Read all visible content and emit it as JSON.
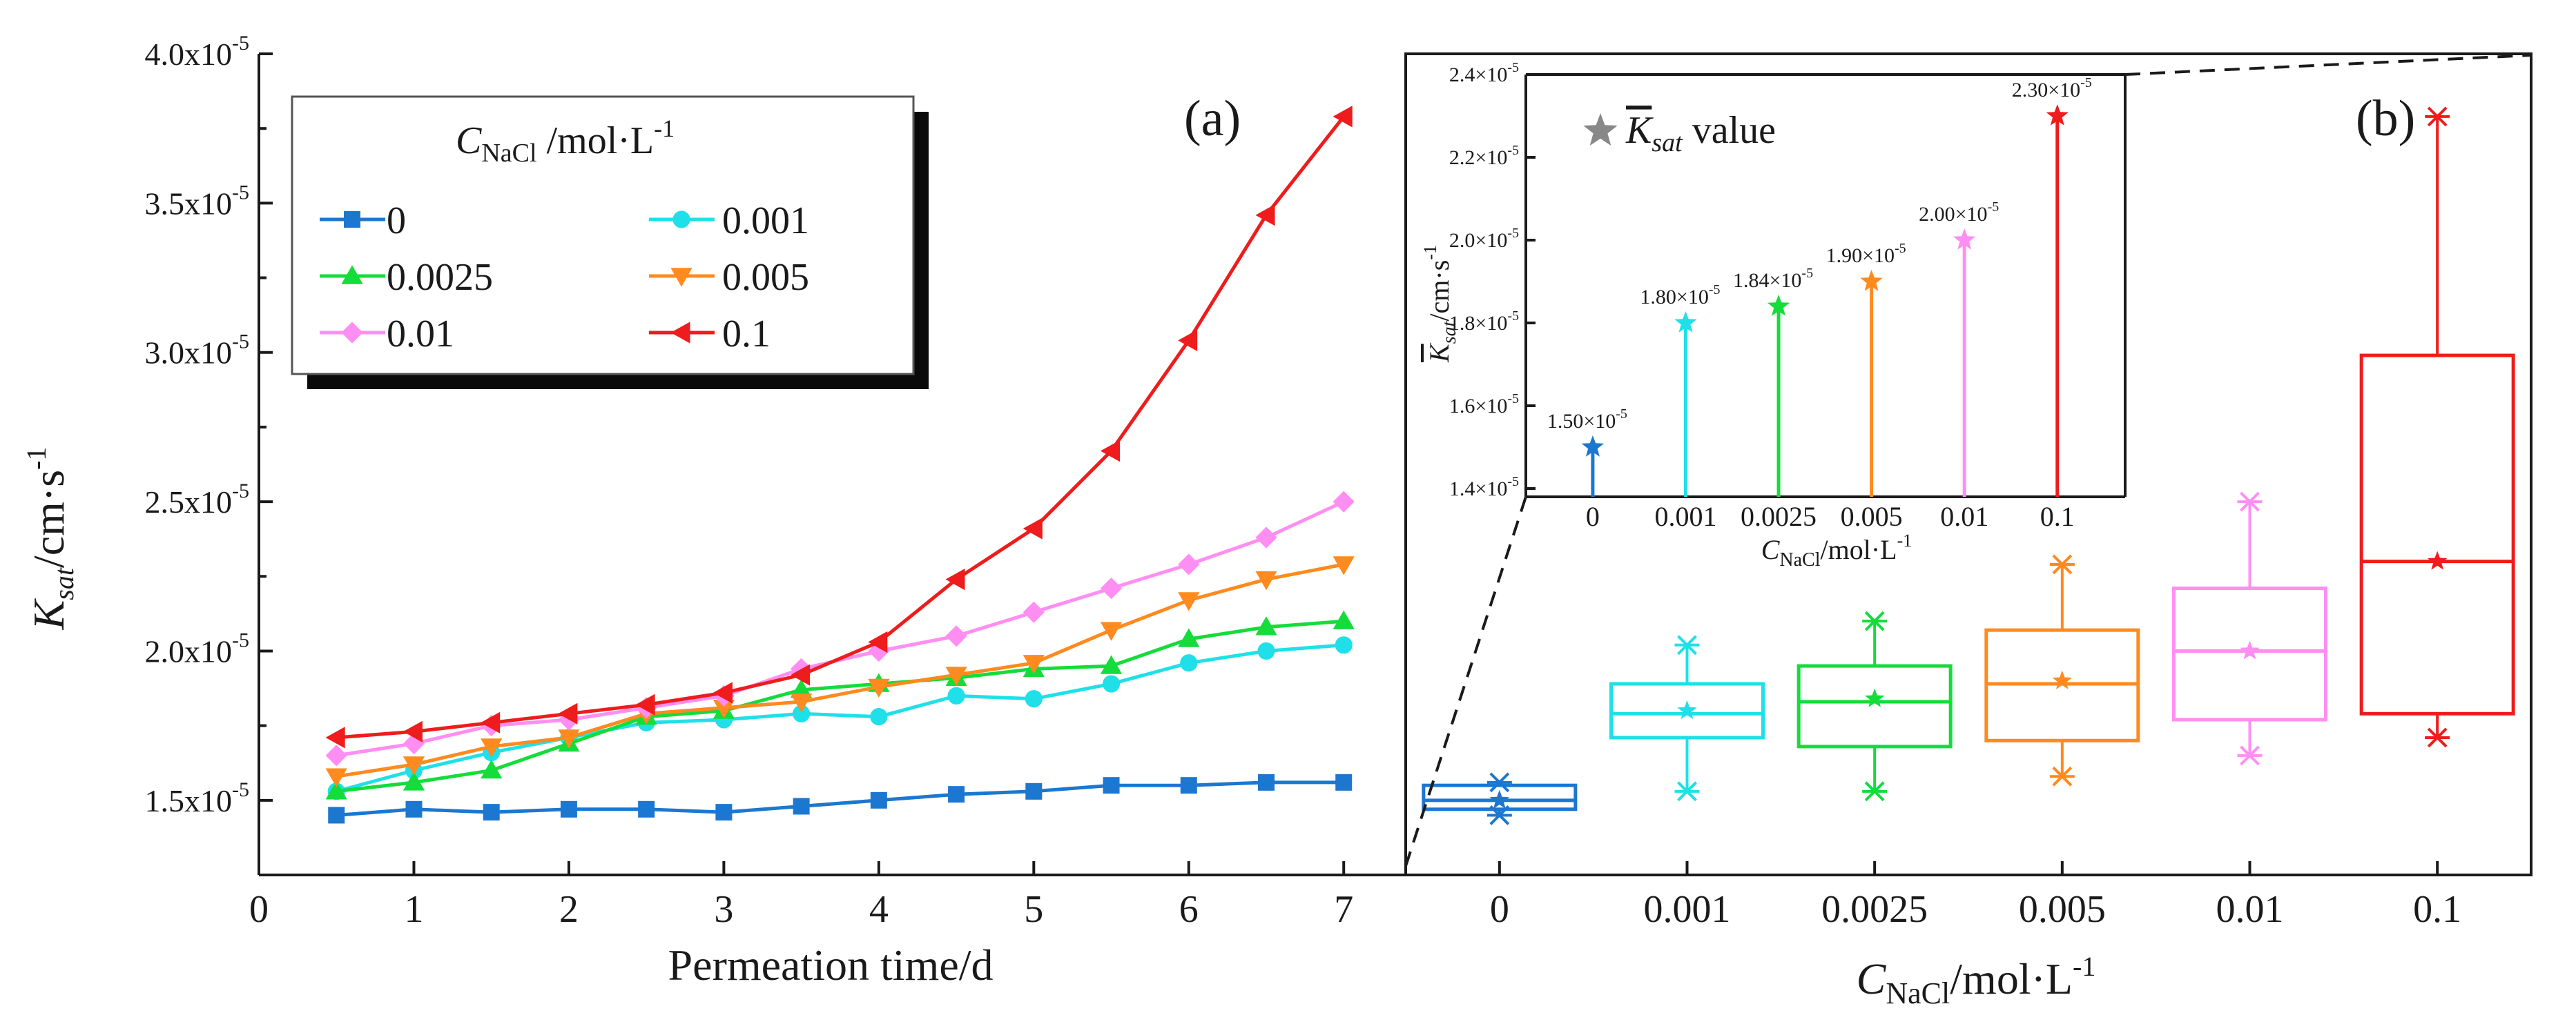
{
  "chart_data": [
    {
      "type": "line",
      "panel_label": "(a)",
      "xlabel": "Permeation time/d",
      "ylabel": "K_sat/cm·s⁻¹",
      "xlim": [
        0,
        7.4
      ],
      "ylim": [
        1.25,
        4.0
      ],
      "x_ticks": [
        0,
        1,
        2,
        3,
        4,
        5,
        6,
        7
      ],
      "y_ticks": [
        1.5,
        2.0,
        2.5,
        3.0,
        3.5,
        4.0
      ],
      "y_tick_labels": [
        "1.5x10⁻⁵",
        "2.0x10⁻⁵",
        "2.5x10⁻⁵",
        "3.0x10⁻⁵",
        "3.5x10⁻⁵",
        "4.0x10⁻⁵"
      ],
      "legend_title": "C_NaCl /mol·L⁻¹",
      "legend_position": "top-left",
      "x": [
        0.5,
        1,
        1.5,
        2,
        2.5,
        3,
        3.5,
        4,
        4.5,
        5,
        5.5,
        6,
        6.5,
        7
      ],
      "series": [
        {
          "name": "0",
          "color": "#1c77d0",
          "marker": "square",
          "values": [
            1.45,
            1.47,
            1.46,
            1.47,
            1.47,
            1.46,
            1.48,
            1.5,
            1.52,
            1.53,
            1.55,
            1.55,
            1.56,
            1.56
          ]
        },
        {
          "name": "0.001",
          "color": "#1fe0e8",
          "marker": "circle",
          "values": [
            1.53,
            1.6,
            1.66,
            1.71,
            1.76,
            1.77,
            1.79,
            1.78,
            1.85,
            1.84,
            1.89,
            1.96,
            2.0,
            2.02
          ]
        },
        {
          "name": "0.0025",
          "color": "#14dc3a",
          "marker": "triangle-up",
          "values": [
            1.53,
            1.56,
            1.6,
            1.69,
            1.78,
            1.8,
            1.87,
            1.89,
            1.91,
            1.94,
            1.95,
            2.04,
            2.08,
            2.1
          ]
        },
        {
          "name": "0.005",
          "color": "#ff8a1e",
          "marker": "triangle-down",
          "values": [
            1.58,
            1.62,
            1.68,
            1.71,
            1.79,
            1.81,
            1.83,
            1.88,
            1.92,
            1.96,
            2.07,
            2.17,
            2.24,
            2.29
          ]
        },
        {
          "name": "0.01",
          "color": "#ff8ef3",
          "marker": "diamond",
          "values": [
            1.65,
            1.69,
            1.75,
            1.77,
            1.81,
            1.85,
            1.94,
            2.0,
            2.05,
            2.13,
            2.21,
            2.29,
            2.38,
            2.5
          ]
        },
        {
          "name": "0.1",
          "color": "#ee1c1c",
          "marker": "triangle-left",
          "values": [
            1.71,
            1.73,
            1.76,
            1.79,
            1.82,
            1.86,
            1.92,
            2.03,
            2.24,
            2.41,
            2.67,
            3.04,
            3.46,
            3.79
          ]
        }
      ]
    },
    {
      "type": "box",
      "panel_label": "(b)",
      "xlabel": "C_NaCl/mol·L⁻¹",
      "categories": [
        "0",
        "0.001",
        "0.0025",
        "0.005",
        "0.01",
        "0.1"
      ],
      "ylim": [
        1.25,
        4.0
      ],
      "colors": [
        "#1c77d0",
        "#1fe0e8",
        "#14dc3a",
        "#ff8a1e",
        "#ff8ef3",
        "#ee1c1c"
      ],
      "boxes": [
        {
          "min": 1.45,
          "q1": 1.47,
          "median": 1.5,
          "q3": 1.55,
          "max": 1.56,
          "mean": 1.5
        },
        {
          "min": 1.53,
          "q1": 1.71,
          "median": 1.79,
          "q3": 1.89,
          "max": 2.02,
          "mean": 1.8
        },
        {
          "min": 1.53,
          "q1": 1.68,
          "median": 1.83,
          "q3": 1.95,
          "max": 2.1,
          "mean": 1.84
        },
        {
          "min": 1.58,
          "q1": 1.7,
          "median": 1.89,
          "q3": 2.07,
          "max": 2.29,
          "mean": 1.9
        },
        {
          "min": 1.65,
          "q1": 1.77,
          "median": 2.0,
          "q3": 2.21,
          "max": 2.5,
          "mean": 2.0
        },
        {
          "min": 1.71,
          "q1": 1.79,
          "median": 2.3,
          "q3": 2.99,
          "max": 3.79,
          "mean": 2.3
        }
      ]
    },
    {
      "type": "stem",
      "inset_of": "(b)",
      "xlabel": "C_NaCl/mol·L⁻¹",
      "ylabel": "K̄_sat/cm·s⁻¹",
      "legend_label": "K̄_sat value",
      "legend_position": "top-left",
      "categories": [
        "0",
        "0.001",
        "0.0025",
        "0.005",
        "0.01",
        "0.1"
      ],
      "values": [
        1.5,
        1.8,
        1.84,
        1.9,
        2.0,
        2.3
      ],
      "value_labels": [
        "1.50×10⁻⁵",
        "1.80×10⁻⁵",
        "1.84×10⁻⁵",
        "1.90×10⁻⁵",
        "2.00×10⁻⁵",
        "2.30×10⁻⁵"
      ],
      "ylim": [
        1.38,
        2.4
      ],
      "y_ticks": [
        1.4,
        1.6,
        1.8,
        2.0,
        2.2,
        2.4
      ],
      "y_tick_labels": [
        "1.4×10⁻⁵",
        "1.6×10⁻⁵",
        "1.8×10⁻⁵",
        "2.0×10⁻⁵",
        "2.2×10⁻⁵",
        "2.4×10⁻⁵"
      ]
    }
  ]
}
